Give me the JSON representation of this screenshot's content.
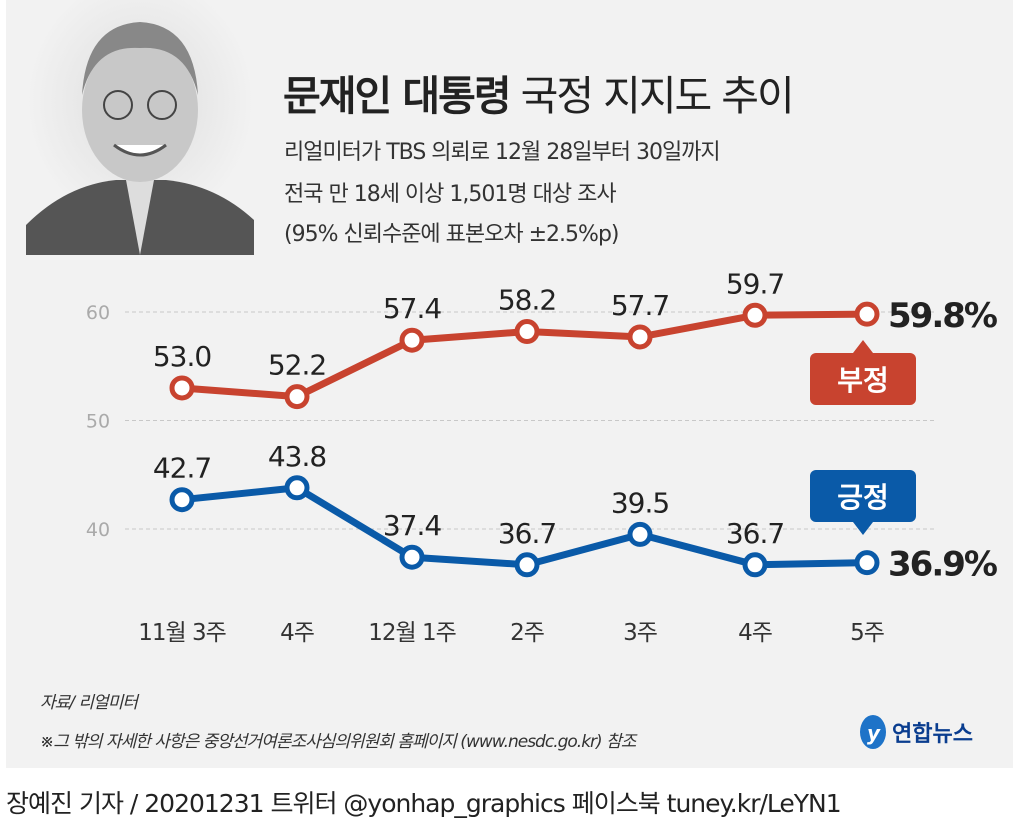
{
  "header": {
    "title_bold": "문재인 대통령",
    "title_rest": " 국정 지지도 추이",
    "sub1": "리얼미터가 TBS 의뢰로 12월 28일부터 30일까지",
    "sub2": "전국 만 18세 이상 1,501명 대상 조사",
    "sub3": "(95% 신뢰수준에 표본오차 ±2.5%p)"
  },
  "chart_data": {
    "type": "line",
    "categories": [
      "11월 3주",
      "4주",
      "12월 1주",
      "2주",
      "3주",
      "4주",
      "5주"
    ],
    "ylim": [
      35,
      62
    ],
    "yticks": [
      40,
      50,
      60
    ],
    "grid": true,
    "series": [
      {
        "name": "부정",
        "color": "#c8432f",
        "values": [
          53.0,
          52.2,
          57.4,
          58.2,
          57.7,
          59.7,
          59.8
        ],
        "last_label": "59.8%"
      },
      {
        "name": "긍정",
        "color": "#0a5aa8",
        "values": [
          42.7,
          43.8,
          37.4,
          36.7,
          39.5,
          36.7,
          36.9
        ],
        "last_label": "36.9%"
      }
    ]
  },
  "footer": {
    "source": "자료/ 리얼미터",
    "note": "※그 밖의 자세한 사항은 중앙선거여론조사심의위원회 홈페이지 (www.nesdc.go.kr) 참조",
    "logo": "연합뉴스",
    "credit": "장예진 기자 / 20201231 트위터 @yonhap_graphics  페이스북 tuney.kr/LeYN1"
  }
}
